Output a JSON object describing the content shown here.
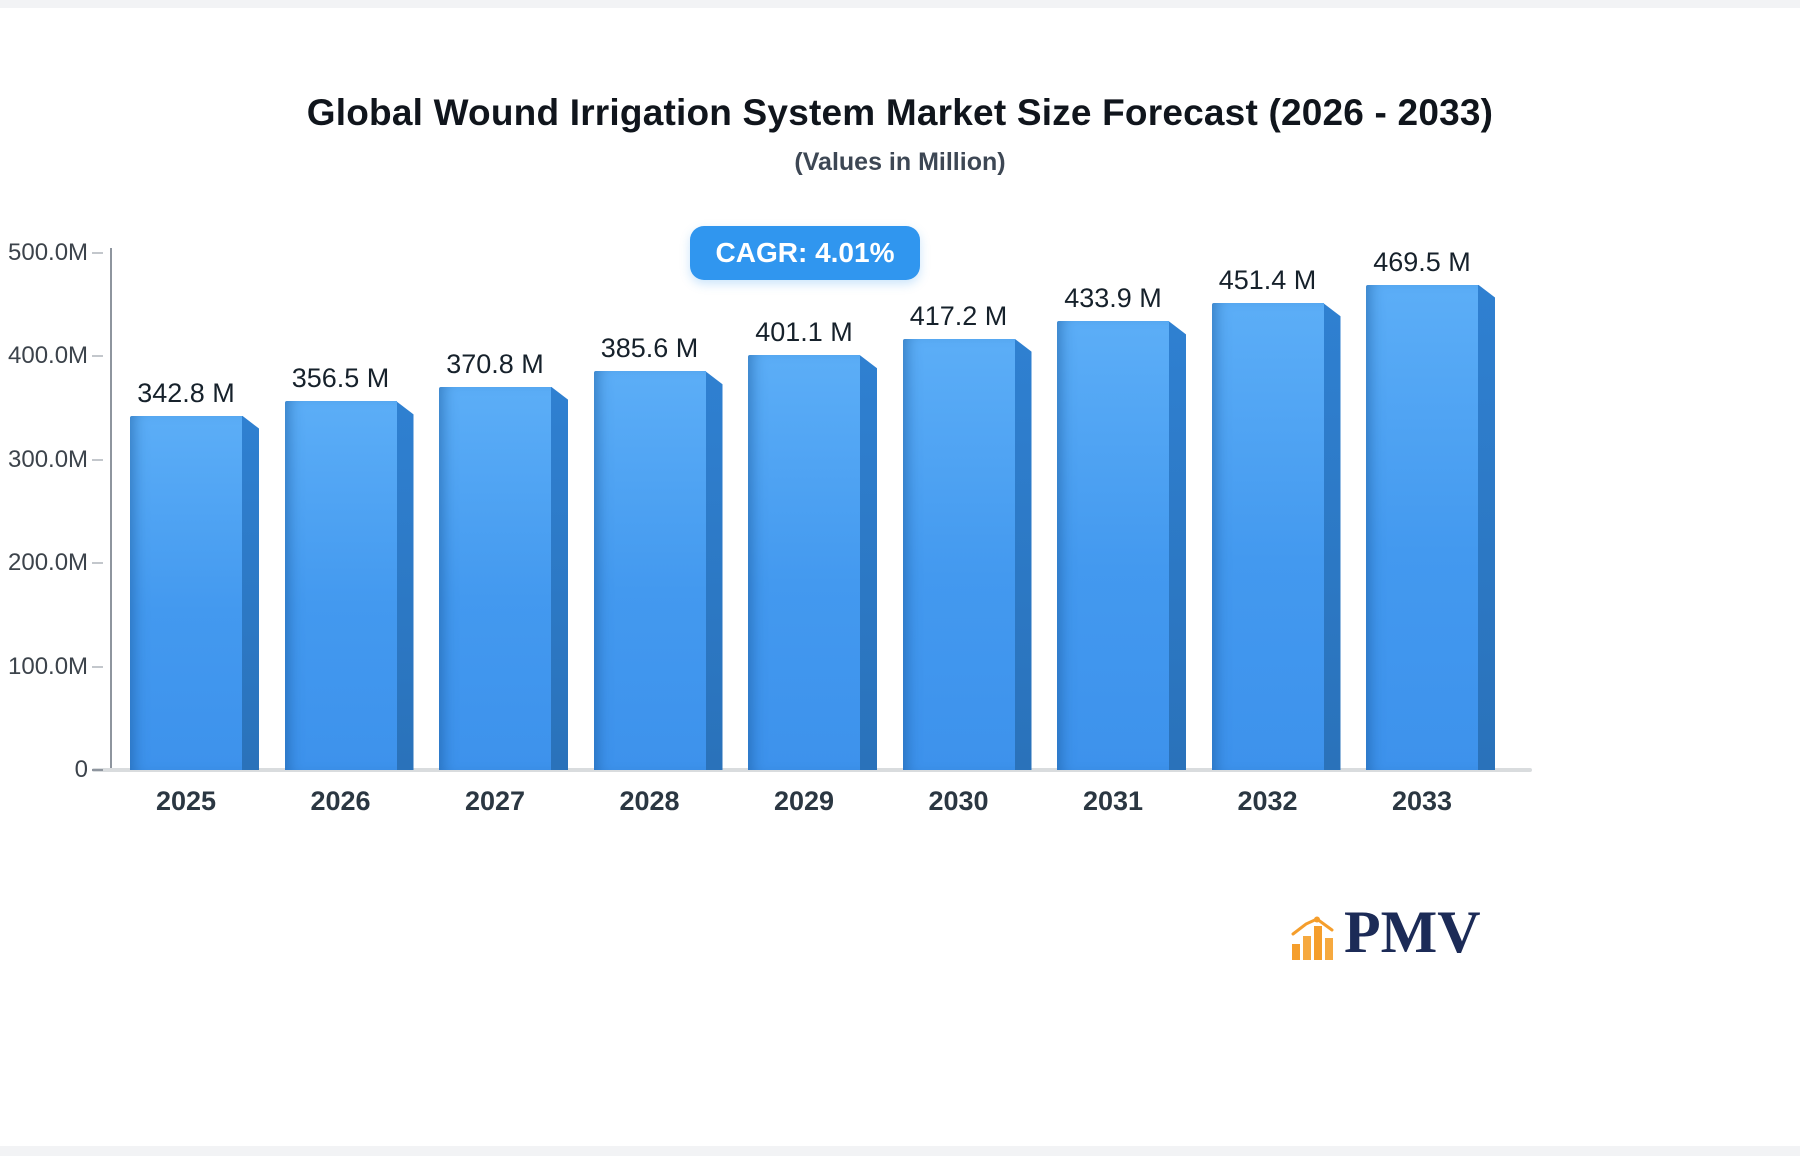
{
  "title": "Global Wound Irrigation System Market Size Forecast (2026 - 2033)",
  "subtitle": "(Values in Million)",
  "badge": {
    "label": "CAGR: 4.01%"
  },
  "logo": {
    "text": "PMV"
  },
  "colors": {
    "bar_front": "#4399ef",
    "bar_side": "#2c77c4",
    "badge_bg": "#3096ef",
    "logo_navy": "#1c2b57",
    "logo_orange": "#f59e2c"
  },
  "chart_data": {
    "type": "bar",
    "title": "Global Wound Irrigation System Market Size Forecast (2026 - 2033)",
    "subtitle": "(Values in Million)",
    "categories": [
      "2025",
      "2026",
      "2027",
      "2028",
      "2029",
      "2030",
      "2031",
      "2032",
      "2033"
    ],
    "values": [
      342.8,
      356.5,
      370.8,
      385.6,
      401.1,
      417.2,
      433.9,
      451.4,
      469.5
    ],
    "value_labels": [
      "342.8 M",
      "356.5 M",
      "370.8 M",
      "385.6 M",
      "401.1 M",
      "417.2 M",
      "433.9 M",
      "451.4 M",
      "469.5 M"
    ],
    "xlabel": "",
    "ylabel": "",
    "ylim": [
      0,
      500
    ],
    "ytick_labels": [
      "0",
      "100.0M",
      "200.0M",
      "300.0M",
      "400.0M",
      "500.0M"
    ],
    "grid": false,
    "legend": false,
    "annotation": "CAGR: 4.01%"
  }
}
